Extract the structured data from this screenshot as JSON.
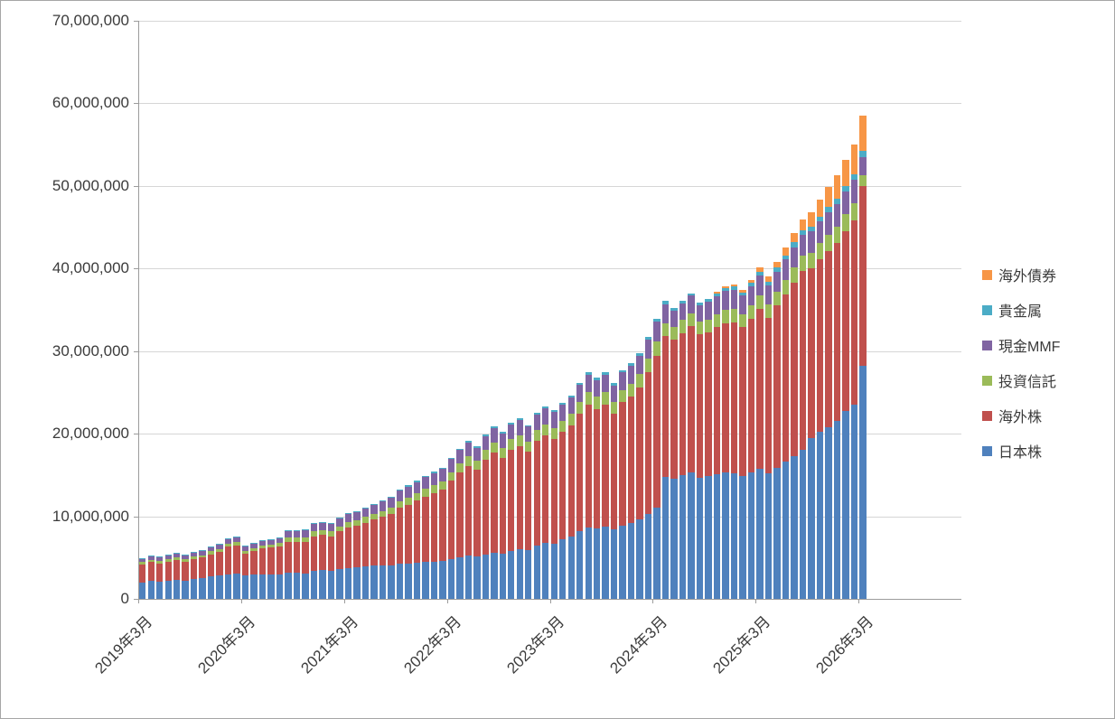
{
  "chart_data": {
    "type": "bar",
    "stacked": true,
    "title": "",
    "unit": "JPY",
    "unit_multiplier": 1000000,
    "n_bars": 85,
    "grid": true,
    "legend_position": "right",
    "ylim": [
      0,
      70000000
    ],
    "y_tick_values": [
      0,
      10000000,
      20000000,
      30000000,
      40000000,
      50000000,
      60000000,
      70000000
    ],
    "y_tick_labels": [
      "0",
      "10,000,000",
      "20,000,000",
      "30,000,000",
      "40,000,000",
      "50,000,000",
      "60,000,000",
      "70,000,000"
    ],
    "x_tick_indices": [
      0,
      12,
      24,
      36,
      48,
      60,
      72,
      84
    ],
    "x_tick_labels": [
      "2019年3月",
      "2020年3月",
      "2021年3月",
      "2022年3月",
      "2023年3月",
      "2024年3月",
      "2025年3月",
      "2026年3月"
    ],
    "legend_top_to_bottom": [
      "海外債券",
      "貴金属",
      "現金MMF",
      "投資信託",
      "海外株",
      "日本株"
    ],
    "series": [
      {
        "id": "japan-stocks",
        "name": "日本株",
        "color": "#4F81BD",
        "values_millions": [
          2.0,
          2.2,
          2.1,
          2.2,
          2.3,
          2.2,
          2.4,
          2.5,
          2.7,
          2.8,
          3.0,
          3.1,
          2.8,
          2.9,
          3.0,
          3.0,
          3.0,
          3.2,
          3.2,
          3.1,
          3.4,
          3.5,
          3.4,
          3.6,
          3.7,
          3.8,
          3.9,
          4.0,
          4.0,
          4.1,
          4.3,
          4.3,
          4.4,
          4.5,
          4.5,
          4.6,
          4.8,
          5.0,
          5.2,
          5.1,
          5.4,
          5.6,
          5.5,
          5.8,
          6.0,
          5.9,
          6.5,
          6.8,
          6.7,
          7.2,
          7.6,
          8.2,
          8.6,
          8.5,
          8.7,
          8.4,
          8.9,
          9.2,
          9.6,
          10.3,
          11.0,
          14.8,
          14.6,
          15.0,
          15.3,
          14.7,
          14.9,
          15.1,
          15.3,
          15.2,
          14.9,
          15.3,
          15.8,
          15.2,
          15.9,
          16.6,
          17.3,
          18.1,
          19.5,
          20.2,
          20.8,
          21.5,
          22.8,
          23.5,
          28.2
        ]
      },
      {
        "id": "foreign-stocks",
        "name": "海外株",
        "color": "#C0504D",
        "values_millions": [
          2.2,
          2.3,
          2.2,
          2.3,
          2.4,
          2.3,
          2.4,
          2.5,
          2.7,
          2.9,
          3.3,
          3.4,
          2.7,
          2.9,
          3.1,
          3.2,
          3.3,
          3.7,
          3.7,
          3.8,
          4.2,
          4.3,
          4.2,
          4.6,
          4.9,
          5.1,
          5.3,
          5.6,
          5.9,
          6.2,
          6.7,
          7.1,
          7.5,
          7.9,
          8.3,
          8.6,
          9.5,
          10.3,
          10.9,
          10.5,
          11.4,
          12.1,
          11.6,
          12.3,
          12.5,
          11.9,
          12.6,
          13.0,
          12.7,
          13.0,
          13.4,
          14.2,
          14.9,
          14.5,
          14.8,
          14.0,
          14.9,
          15.3,
          16.0,
          17.1,
          18.4,
          17.0,
          16.8,
          17.2,
          17.7,
          17.3,
          17.4,
          17.8,
          18.1,
          18.3,
          18.0,
          18.6,
          19.3,
          18.8,
          19.6,
          20.3,
          21.0,
          21.6,
          20.5,
          20.9,
          21.3,
          21.6,
          21.7,
          22.3,
          21.8
        ]
      },
      {
        "id": "mutual-funds",
        "name": "投資信託",
        "color": "#9BBB59",
        "values_millions": [
          0.25,
          0.25,
          0.25,
          0.3,
          0.3,
          0.3,
          0.3,
          0.3,
          0.35,
          0.35,
          0.4,
          0.4,
          0.35,
          0.35,
          0.4,
          0.4,
          0.45,
          0.5,
          0.5,
          0.5,
          0.55,
          0.55,
          0.55,
          0.6,
          0.65,
          0.65,
          0.7,
          0.7,
          0.75,
          0.8,
          0.85,
          0.9,
          0.9,
          0.95,
          1.0,
          1.0,
          1.05,
          1.1,
          1.15,
          1.1,
          1.2,
          1.25,
          1.2,
          1.25,
          1.3,
          1.25,
          1.3,
          1.3,
          1.3,
          1.35,
          1.4,
          1.45,
          1.5,
          1.45,
          1.5,
          1.45,
          1.5,
          1.55,
          1.6,
          1.7,
          1.8,
          1.6,
          1.5,
          1.55,
          1.6,
          1.55,
          1.55,
          1.6,
          1.65,
          1.65,
          1.6,
          1.65,
          1.7,
          1.65,
          1.7,
          1.75,
          1.8,
          1.85,
          1.9,
          1.95,
          2.0,
          2.0,
          2.05,
          2.1,
          1.3
        ]
      },
      {
        "id": "cash-mmf",
        "name": "現金MMF",
        "color": "#8064A2",
        "values_millions": [
          0.45,
          0.45,
          0.5,
          0.5,
          0.5,
          0.5,
          0.5,
          0.55,
          0.55,
          0.6,
          0.6,
          0.6,
          0.55,
          0.55,
          0.55,
          0.6,
          0.6,
          0.8,
          0.8,
          0.9,
          0.9,
          0.9,
          0.9,
          0.95,
          1.0,
          1.0,
          1.05,
          1.1,
          1.15,
          1.2,
          1.25,
          1.3,
          1.35,
          1.4,
          1.45,
          1.5,
          1.55,
          1.6,
          1.65,
          1.6,
          1.7,
          1.75,
          1.7,
          1.8,
          1.85,
          1.8,
          1.9,
          1.95,
          1.9,
          1.95,
          2.0,
          2.05,
          2.1,
          2.05,
          2.1,
          2.0,
          2.1,
          2.15,
          2.2,
          2.3,
          2.4,
          2.3,
          2.0,
          2.05,
          2.1,
          2.05,
          2.1,
          2.15,
          2.2,
          2.25,
          2.2,
          2.3,
          2.35,
          2.3,
          2.4,
          2.45,
          2.5,
          2.55,
          2.6,
          2.65,
          2.7,
          2.75,
          2.8,
          2.85,
          2.2
        ]
      },
      {
        "id": "precious-metals",
        "name": "貴金属",
        "color": "#4BACC6",
        "values_millions": [
          0.05,
          0.05,
          0.05,
          0.05,
          0.05,
          0.05,
          0.05,
          0.05,
          0.05,
          0.05,
          0.05,
          0.05,
          0.05,
          0.05,
          0.05,
          0.05,
          0.05,
          0.1,
          0.1,
          0.1,
          0.1,
          0.1,
          0.1,
          0.1,
          0.1,
          0.1,
          0.1,
          0.1,
          0.1,
          0.1,
          0.15,
          0.15,
          0.15,
          0.15,
          0.15,
          0.15,
          0.15,
          0.15,
          0.2,
          0.2,
          0.2,
          0.2,
          0.2,
          0.2,
          0.2,
          0.2,
          0.2,
          0.25,
          0.25,
          0.25,
          0.25,
          0.25,
          0.3,
          0.3,
          0.3,
          0.3,
          0.3,
          0.3,
          0.3,
          0.35,
          0.35,
          0.35,
          0.3,
          0.3,
          0.3,
          0.3,
          0.35,
          0.35,
          0.35,
          0.4,
          0.4,
          0.4,
          0.45,
          0.45,
          0.5,
          0.5,
          0.55,
          0.55,
          0.6,
          0.6,
          0.65,
          0.65,
          0.65,
          0.7,
          0.7
        ]
      },
      {
        "id": "foreign-bonds",
        "name": "海外債券",
        "color": "#F79646",
        "values_millions": [
          0,
          0,
          0,
          0,
          0,
          0,
          0,
          0,
          0,
          0,
          0,
          0,
          0,
          0,
          0,
          0,
          0,
          0,
          0,
          0,
          0,
          0,
          0,
          0,
          0,
          0,
          0,
          0,
          0,
          0,
          0,
          0,
          0,
          0,
          0,
          0,
          0,
          0,
          0,
          0,
          0,
          0,
          0,
          0,
          0,
          0,
          0,
          0,
          0,
          0,
          0,
          0,
          0,
          0,
          0,
          0,
          0,
          0,
          0,
          0,
          0,
          0,
          0,
          0,
          0,
          0,
          0,
          0.2,
          0.25,
          0.3,
          0.3,
          0.35,
          0.5,
          0.6,
          0.7,
          0.9,
          1.1,
          1.3,
          1.7,
          2.0,
          2.4,
          2.8,
          3.2,
          3.6,
          4.3
        ]
      }
    ]
  },
  "frame": {
    "background": "#ffffff",
    "border_color": "#a6a6a6",
    "gridline_color": "#d6d6d6",
    "axis_color": "#9c9c9c",
    "text_color": "#3b3b3b"
  }
}
